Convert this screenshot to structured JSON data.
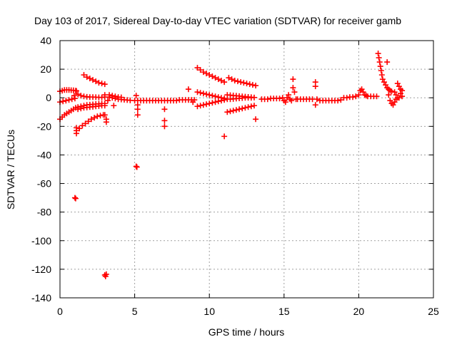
{
  "chart_data": {
    "type": "scatter",
    "title": "Day 103 of 2017, Sidereal Day-to-day VTEC variation (SDTVAR) for receiver gamb",
    "xlabel": "GPS time / hours",
    "ylabel": "SDTVAR / TECUs",
    "xlim": [
      0,
      25
    ],
    "ylim": [
      -140,
      40
    ],
    "xticks": [
      0,
      5,
      10,
      15,
      20,
      25
    ],
    "yticks": [
      -140,
      -120,
      -100,
      -80,
      -60,
      -40,
      -20,
      0,
      20,
      40
    ],
    "grid": true,
    "marker": "+",
    "color": "#ff0000",
    "series": [
      {
        "name": "SDTVAR",
        "points": [
          [
            0.0,
            -15
          ],
          [
            0.15,
            -13.5
          ],
          [
            0.3,
            -12
          ],
          [
            0.45,
            -11
          ],
          [
            0.6,
            -10
          ],
          [
            0.75,
            -9
          ],
          [
            0.9,
            -8
          ],
          [
            1.05,
            -7
          ],
          [
            1.2,
            -6.5
          ],
          [
            1.4,
            -6
          ],
          [
            1.6,
            -5.5
          ],
          [
            1.8,
            -5
          ],
          [
            2.0,
            -4.8
          ],
          [
            2.2,
            -4.6
          ],
          [
            2.4,
            -4.4
          ],
          [
            2.6,
            -4.2
          ],
          [
            2.8,
            -4
          ],
          [
            3.0,
            -4
          ],
          [
            0.0,
            4.5
          ],
          [
            0.15,
            5
          ],
          [
            0.3,
            5.5
          ],
          [
            0.45,
            5.5
          ],
          [
            0.6,
            5.5
          ],
          [
            0.75,
            5.3
          ],
          [
            0.9,
            5.2
          ],
          [
            1.05,
            5
          ],
          [
            1.1,
            4.8
          ],
          [
            0.0,
            -3
          ],
          [
            0.2,
            -2.5
          ],
          [
            0.4,
            -2
          ],
          [
            0.6,
            -1.5
          ],
          [
            0.8,
            -1
          ],
          [
            1.0,
            -0.5
          ],
          [
            1.1,
            -23
          ],
          [
            1.3,
            -21.5
          ],
          [
            1.5,
            -19.5
          ],
          [
            1.7,
            -18
          ],
          [
            1.9,
            -16.5
          ],
          [
            2.1,
            -15
          ],
          [
            2.3,
            -14
          ],
          [
            2.5,
            -13
          ],
          [
            2.7,
            -12.5
          ],
          [
            2.9,
            -12
          ],
          [
            3.0,
            -12
          ],
          [
            1.2,
            -8
          ],
          [
            1.4,
            -7.5
          ],
          [
            1.6,
            -7
          ],
          [
            1.8,
            -6.8
          ],
          [
            2.0,
            -6.5
          ],
          [
            2.2,
            -6.3
          ],
          [
            2.4,
            -6
          ],
          [
            2.6,
            -5.8
          ],
          [
            2.8,
            -5.5
          ],
          [
            3.0,
            -5.5
          ],
          [
            1.2,
            2.5
          ],
          [
            1.4,
            1.5
          ],
          [
            1.6,
            1
          ],
          [
            1.8,
            0.7
          ],
          [
            2.0,
            0.5
          ],
          [
            2.2,
            0.5
          ],
          [
            2.4,
            0.4
          ],
          [
            2.6,
            0.3
          ],
          [
            2.8,
            0.3
          ],
          [
            3.0,
            0.5
          ],
          [
            1.6,
            16
          ],
          [
            1.8,
            14.5
          ],
          [
            2.0,
            13.5
          ],
          [
            2.2,
            12.5
          ],
          [
            2.4,
            11.5
          ],
          [
            2.6,
            10.5
          ],
          [
            2.8,
            10
          ],
          [
            3.0,
            9.5
          ],
          [
            1.0,
            -70
          ],
          [
            1.05,
            -70.5
          ],
          [
            1.1,
            -21
          ],
          [
            1.1,
            -25
          ],
          [
            0.95,
            1.5
          ],
          [
            3.0,
            -124
          ],
          [
            3.1,
            -123.5
          ],
          [
            3.05,
            -125
          ],
          [
            3.1,
            -15
          ],
          [
            3.1,
            -17
          ],
          [
            3.2,
            -2
          ],
          [
            3.0,
            2
          ],
          [
            3.3,
            0.5
          ],
          [
            3.5,
            0
          ],
          [
            3.7,
            -0.5
          ],
          [
            3.9,
            -1
          ],
          [
            4.1,
            -1.2
          ],
          [
            4.3,
            -1.4
          ],
          [
            4.5,
            -1.6
          ],
          [
            4.7,
            -1.8
          ],
          [
            3.6,
            -5.5
          ],
          [
            3.3,
            2
          ],
          [
            3.5,
            1.5
          ],
          [
            3.7,
            1
          ],
          [
            3.9,
            0.5
          ],
          [
            4.1,
            0.3
          ],
          [
            5.0,
            -2
          ],
          [
            5.2,
            -2
          ],
          [
            5.4,
            -2
          ],
          [
            5.6,
            -2
          ],
          [
            5.8,
            -2
          ],
          [
            6.0,
            -2
          ],
          [
            6.2,
            -2
          ],
          [
            6.4,
            -2
          ],
          [
            6.6,
            -2
          ],
          [
            6.8,
            -2
          ],
          [
            7.0,
            -2
          ],
          [
            7.2,
            -2
          ],
          [
            7.4,
            -2
          ],
          [
            7.6,
            -2
          ],
          [
            7.8,
            -2
          ],
          [
            8.0,
            -1.5
          ],
          [
            8.2,
            -1.5
          ],
          [
            8.4,
            -1.5
          ],
          [
            8.6,
            -1.5
          ],
          [
            8.8,
            -1.5
          ],
          [
            9.0,
            -1.5
          ],
          [
            5.1,
            -48
          ],
          [
            5.15,
            -48.5
          ],
          [
            5.1,
            1.5
          ],
          [
            5.2,
            -8
          ],
          [
            5.2,
            -12
          ],
          [
            5.2,
            -5
          ],
          [
            7.0,
            -8
          ],
          [
            7.0,
            -16
          ],
          [
            7.0,
            -20
          ],
          [
            8.9,
            -3
          ],
          [
            9.2,
            21
          ],
          [
            9.4,
            19.5
          ],
          [
            9.6,
            18
          ],
          [
            9.8,
            17
          ],
          [
            10.0,
            16
          ],
          [
            10.2,
            15
          ],
          [
            10.4,
            14
          ],
          [
            10.6,
            13
          ],
          [
            10.8,
            12
          ],
          [
            11.0,
            11
          ],
          [
            9.2,
            4
          ],
          [
            9.4,
            3.5
          ],
          [
            9.6,
            3
          ],
          [
            9.8,
            2.5
          ],
          [
            10.0,
            2
          ],
          [
            10.2,
            1.5
          ],
          [
            10.4,
            1
          ],
          [
            10.6,
            0.5
          ],
          [
            10.8,
            0
          ],
          [
            11.0,
            -0.5
          ],
          [
            9.2,
            -6
          ],
          [
            9.4,
            -5.5
          ],
          [
            9.6,
            -5
          ],
          [
            9.8,
            -4.5
          ],
          [
            10.0,
            -4
          ],
          [
            10.2,
            -3.5
          ],
          [
            10.4,
            -3
          ],
          [
            10.6,
            -2.5
          ],
          [
            10.8,
            -2
          ],
          [
            11.0,
            -1.5
          ],
          [
            8.6,
            6
          ],
          [
            11.0,
            -27
          ],
          [
            11.3,
            14
          ],
          [
            11.5,
            13
          ],
          [
            11.7,
            12
          ],
          [
            11.9,
            11.5
          ],
          [
            12.1,
            11
          ],
          [
            12.3,
            10.5
          ],
          [
            12.5,
            10
          ],
          [
            12.7,
            9.5
          ],
          [
            12.9,
            9
          ],
          [
            13.1,
            8.5
          ],
          [
            11.2,
            -10
          ],
          [
            11.4,
            -9.5
          ],
          [
            11.6,
            -9
          ],
          [
            11.8,
            -8.5
          ],
          [
            12.0,
            -8
          ],
          [
            12.2,
            -7.5
          ],
          [
            12.4,
            -7
          ],
          [
            12.6,
            -6.5
          ],
          [
            12.8,
            -6
          ],
          [
            13.0,
            -5.5
          ],
          [
            11.2,
            2
          ],
          [
            11.4,
            1.8
          ],
          [
            11.6,
            1.6
          ],
          [
            11.8,
            1.4
          ],
          [
            12.0,
            1.2
          ],
          [
            12.2,
            1
          ],
          [
            12.4,
            0.8
          ],
          [
            12.6,
            0.6
          ],
          [
            12.8,
            0.4
          ],
          [
            13.0,
            0.2
          ],
          [
            11.2,
            -1
          ],
          [
            11.4,
            -1
          ],
          [
            11.6,
            -0.8
          ],
          [
            11.8,
            -0.6
          ],
          [
            12.0,
            -0.4
          ],
          [
            12.2,
            -0.2
          ],
          [
            12.4,
            0
          ],
          [
            12.6,
            0
          ],
          [
            12.8,
            0
          ],
          [
            13.1,
            -15
          ],
          [
            13.5,
            -1
          ],
          [
            13.7,
            -1
          ],
          [
            13.9,
            -1
          ],
          [
            14.1,
            -0.5
          ],
          [
            14.3,
            -0.5
          ],
          [
            14.5,
            -0.5
          ],
          [
            14.7,
            -0.5
          ],
          [
            14.9,
            0
          ],
          [
            15.0,
            -2
          ],
          [
            15.1,
            -3
          ],
          [
            15.2,
            0
          ],
          [
            15.3,
            2
          ],
          [
            15.4,
            -1
          ],
          [
            15.5,
            -2
          ],
          [
            15.6,
            13
          ],
          [
            15.6,
            7
          ],
          [
            15.7,
            4
          ],
          [
            15.8,
            -1
          ],
          [
            15.9,
            -1
          ],
          [
            16.1,
            -1
          ],
          [
            16.3,
            -1
          ],
          [
            16.5,
            -1
          ],
          [
            16.7,
            -1
          ],
          [
            16.9,
            -1
          ],
          [
            17.1,
            11
          ],
          [
            17.1,
            8
          ],
          [
            17.1,
            -5
          ],
          [
            17.2,
            -1
          ],
          [
            17.4,
            -2
          ],
          [
            17.6,
            -2
          ],
          [
            17.8,
            -2
          ],
          [
            18.0,
            -2
          ],
          [
            18.2,
            -2
          ],
          [
            18.4,
            -2
          ],
          [
            18.6,
            -2
          ],
          [
            18.8,
            -1.5
          ],
          [
            19.0,
            0
          ],
          [
            19.2,
            0
          ],
          [
            19.4,
            0.5
          ],
          [
            19.6,
            0.5
          ],
          [
            19.8,
            1
          ],
          [
            20.0,
            2
          ],
          [
            20.1,
            5
          ],
          [
            20.2,
            6
          ],
          [
            20.3,
            4
          ],
          [
            20.4,
            2
          ],
          [
            20.5,
            1.5
          ],
          [
            20.6,
            1
          ],
          [
            20.8,
            1
          ],
          [
            21.0,
            1
          ],
          [
            21.2,
            1
          ],
          [
            21.3,
            31
          ],
          [
            21.35,
            28
          ],
          [
            21.4,
            25
          ],
          [
            21.45,
            22
          ],
          [
            21.5,
            19
          ],
          [
            21.55,
            16
          ],
          [
            21.6,
            13
          ],
          [
            21.7,
            11
          ],
          [
            21.8,
            9
          ],
          [
            21.9,
            7
          ],
          [
            22.0,
            6
          ],
          [
            22.1,
            5
          ],
          [
            22.2,
            4.5
          ],
          [
            22.4,
            4
          ],
          [
            21.9,
            25
          ],
          [
            22.0,
            2
          ],
          [
            22.1,
            -2
          ],
          [
            22.2,
            -4
          ],
          [
            22.3,
            -5
          ],
          [
            22.4,
            -3
          ],
          [
            22.5,
            -1
          ],
          [
            22.6,
            0
          ],
          [
            22.6,
            10
          ],
          [
            22.7,
            8
          ],
          [
            22.8,
            6
          ],
          [
            22.9,
            5
          ],
          [
            22.5,
            2
          ],
          [
            22.7,
            0
          ],
          [
            22.8,
            3
          ],
          [
            22.9,
            1
          ]
        ]
      }
    ]
  }
}
